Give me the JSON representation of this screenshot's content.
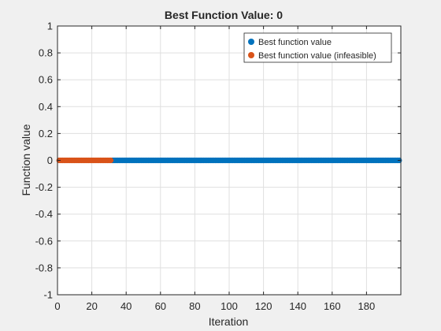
{
  "chart_data": {
    "type": "scatter",
    "title": "Best Function Value: 0",
    "xlabel": "Iteration",
    "ylabel": "Function value",
    "xlim": [
      0,
      200
    ],
    "ylim": [
      -1,
      1
    ],
    "xticks": [
      0,
      20,
      40,
      60,
      80,
      100,
      120,
      140,
      160,
      180
    ],
    "yticks": [
      -1,
      -0.8,
      -0.6,
      -0.4,
      -0.2,
      0,
      0.2,
      0.4,
      0.6,
      0.8,
      1
    ],
    "grid": true,
    "legend_location": "top-right",
    "series": [
      {
        "name": "Best function value",
        "color": "#0072BD",
        "marker": "circle",
        "x_range": [
          32,
          199
        ],
        "y": 0
      },
      {
        "name": "Best function value (infeasible)",
        "color": "#D95319",
        "marker": "circle",
        "x_range": [
          1,
          31
        ],
        "y": 0
      }
    ]
  }
}
